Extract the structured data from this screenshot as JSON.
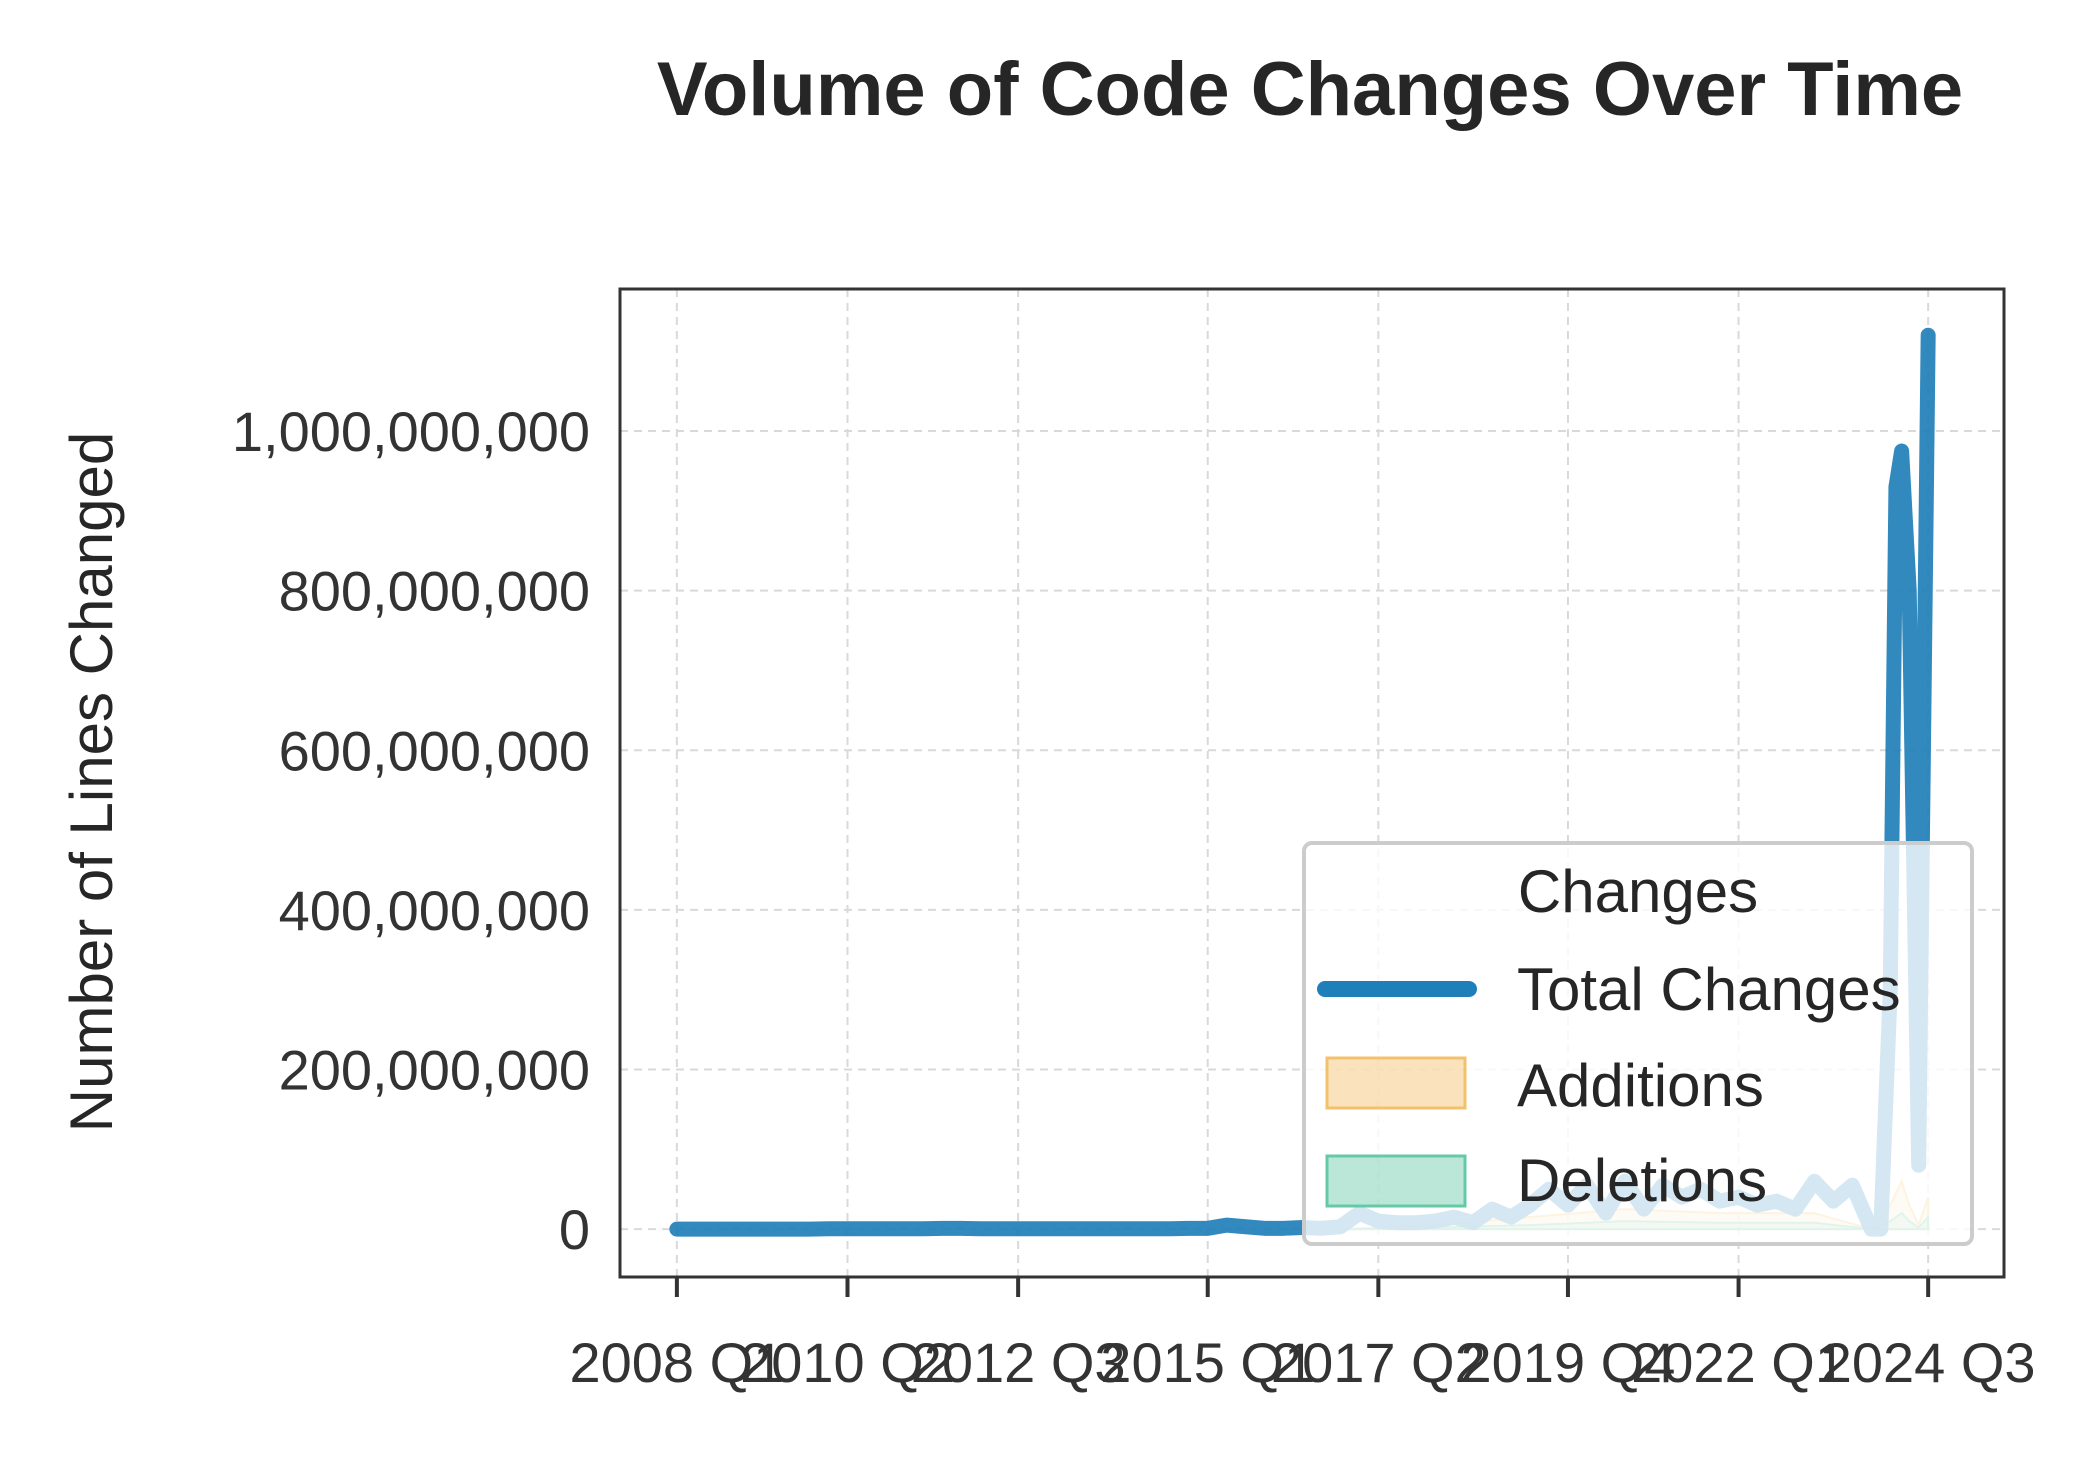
{
  "chart_data": {
    "type": "line",
    "title": "Volume of Code Changes Over Time",
    "xlabel": "",
    "ylabel": "Number of Lines Changed",
    "x_tick_labels": [
      "2008 Q1",
      "2010 Q2",
      "2012 Q3",
      "2015 Q1",
      "2017 Q2",
      "2019 Q4",
      "2022 Q1",
      "2024 Q3"
    ],
    "x_tick_quarter_index": [
      0,
      9,
      18,
      28,
      37,
      47,
      56,
      66
    ],
    "x_range_quarter_index": [
      -3,
      70
    ],
    "y_ticks": [
      0,
      200000000,
      400000000,
      600000000,
      800000000,
      1000000000
    ],
    "y_tick_labels": [
      "0",
      "200,000,000",
      "400,000,000",
      "600,000,000",
      "800,000,000",
      "1,000,000,000"
    ],
    "ylim": [
      -60000000,
      1178000000
    ],
    "grid": true,
    "legend": {
      "title": "Changes",
      "position": "lower right",
      "entries": [
        "Total Changes",
        "Additions",
        "Deletions"
      ]
    },
    "colors": {
      "total": "#1f7fb8",
      "additions": "#f3c06b",
      "deletions": "#66c9a6"
    },
    "series": [
      {
        "name": "Total Changes",
        "style": "line",
        "x_quarter_index": [
          0,
          1,
          2,
          3,
          4,
          5,
          6,
          7,
          8,
          9,
          10,
          11,
          12,
          13,
          14,
          15,
          16,
          17,
          18,
          19,
          20,
          21,
          22,
          23,
          24,
          25,
          26,
          27,
          28,
          29,
          30,
          31,
          32,
          33,
          34,
          35,
          36,
          37,
          38,
          39,
          40,
          41,
          42,
          43,
          44,
          45,
          46,
          47,
          48,
          49,
          50,
          51,
          52,
          53,
          54,
          55,
          56,
          57,
          58,
          59,
          60,
          61,
          62,
          63,
          63.5,
          64,
          64.3,
          64.6,
          65,
          65.5,
          66
        ],
        "values": [
          0,
          0,
          0,
          0,
          0,
          0,
          0,
          0,
          500000,
          500000,
          500000,
          500000,
          500000,
          500000,
          1000000,
          1000000,
          500000,
          500000,
          500000,
          500000,
          500000,
          500000,
          500000,
          500000,
          500000,
          500000,
          500000,
          1000000,
          1000000,
          5000000,
          3000000,
          1000000,
          1000000,
          2000000,
          1000000,
          3000000,
          20000000,
          10000000,
          8000000,
          8000000,
          10000000,
          15000000,
          8000000,
          25000000,
          15000000,
          30000000,
          50000000,
          30000000,
          55000000,
          20000000,
          60000000,
          25000000,
          55000000,
          40000000,
          50000000,
          35000000,
          40000000,
          30000000,
          35000000,
          25000000,
          60000000,
          35000000,
          55000000,
          0,
          0,
          300000000,
          930000000,
          975000000,
          800000000,
          80000000,
          1120000000
        ]
      },
      {
        "name": "Additions",
        "style": "area",
        "x_quarter_index": [
          35,
          40,
          45,
          50,
          55,
          60,
          63,
          64,
          64.6,
          65,
          65.5,
          66
        ],
        "values": [
          0,
          5000000,
          15000000,
          25000000,
          20000000,
          20000000,
          0,
          30000000,
          60000000,
          30000000,
          5000000,
          40000000
        ]
      },
      {
        "name": "Deletions",
        "style": "area",
        "x_quarter_index": [
          35,
          40,
          45,
          50,
          55,
          60,
          63,
          64,
          64.6,
          65,
          65.5,
          66
        ],
        "values": [
          0,
          2000000,
          5000000,
          10000000,
          8000000,
          8000000,
          0,
          10000000,
          20000000,
          10000000,
          2000000,
          15000000
        ]
      }
    ]
  }
}
